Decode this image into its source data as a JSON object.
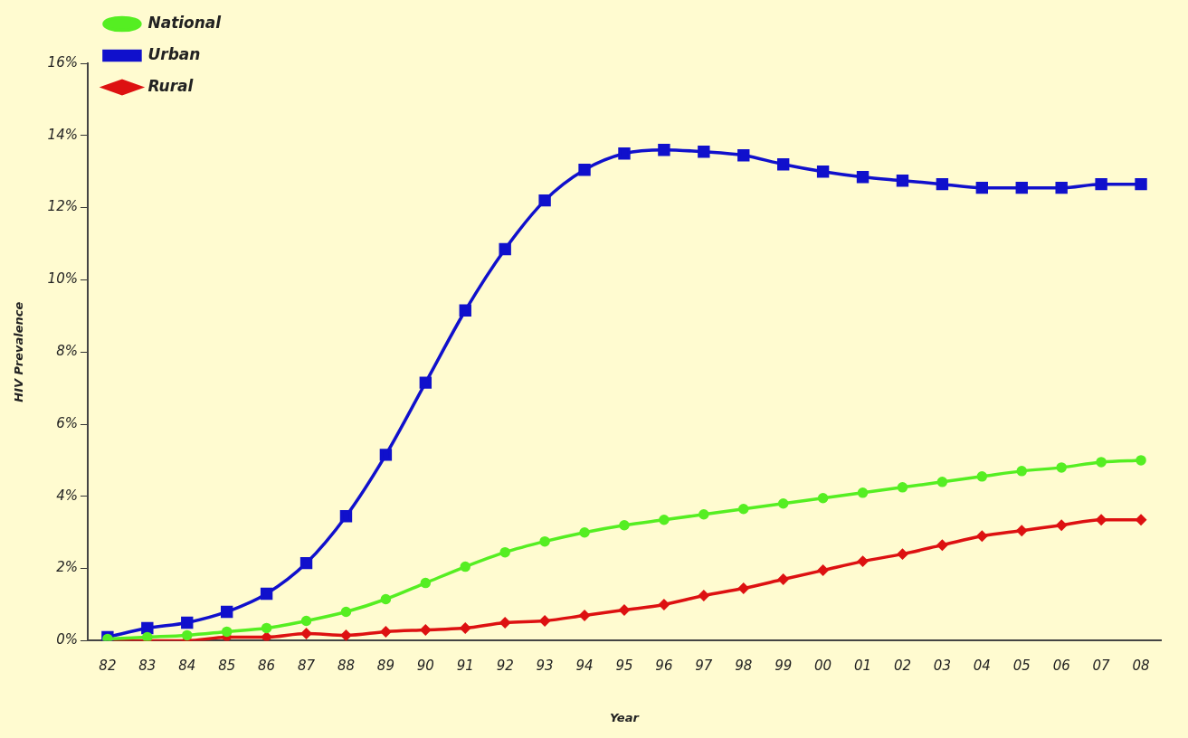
{
  "chart_data": {
    "type": "line",
    "xlabel": "Year",
    "ylabel": "HIV Prevalence",
    "categories": [
      "82",
      "83",
      "84",
      "85",
      "86",
      "87",
      "88",
      "89",
      "90",
      "91",
      "92",
      "93",
      "94",
      "95",
      "96",
      "97",
      "98",
      "99",
      "00",
      "01",
      "02",
      "03",
      "04",
      "05",
      "06",
      "07",
      "08"
    ],
    "series": [
      {
        "name": "National",
        "color": "#55ee22",
        "marker": "circle",
        "values": [
          0.05,
          0.1,
          0.15,
          0.25,
          0.35,
          0.55,
          0.8,
          1.15,
          1.6,
          2.05,
          2.45,
          2.75,
          3.0,
          3.2,
          3.35,
          3.5,
          3.65,
          3.8,
          3.95,
          4.1,
          4.25,
          4.4,
          4.55,
          4.7,
          4.8,
          4.95,
          5.0
        ]
      },
      {
        "name": "Urban",
        "color": "#1010cc",
        "marker": "square",
        "values": [
          0.1,
          0.35,
          0.5,
          0.8,
          1.3,
          2.15,
          3.45,
          5.15,
          7.15,
          9.15,
          10.85,
          12.2,
          13.05,
          13.5,
          13.6,
          13.55,
          13.45,
          13.2,
          13.0,
          12.85,
          12.75,
          12.65,
          12.55,
          12.55,
          12.55,
          12.65,
          12.65
        ]
      },
      {
        "name": "Rural",
        "color": "#dd1111",
        "marker": "diamond",
        "values": [
          0.0,
          0.0,
          0.0,
          0.1,
          0.1,
          0.2,
          0.15,
          0.25,
          0.3,
          0.35,
          0.5,
          0.55,
          0.7,
          0.85,
          1.0,
          1.25,
          1.45,
          1.7,
          1.95,
          2.2,
          2.4,
          2.65,
          2.9,
          3.05,
          3.2,
          3.35,
          3.35
        ]
      }
    ],
    "ylim": [
      0,
      16
    ],
    "yticks": [
      {
        "value": 0,
        "label": "0%"
      },
      {
        "value": 2,
        "label": "2%"
      },
      {
        "value": 4,
        "label": "4%"
      },
      {
        "value": 6,
        "label": "6%"
      },
      {
        "value": 8,
        "label": "8%"
      },
      {
        "value": 10,
        "label": "10%"
      },
      {
        "value": 12,
        "label": "12%"
      },
      {
        "value": 14,
        "label": "14%"
      },
      {
        "value": 16,
        "label": "16%"
      }
    ],
    "grid": false,
    "legend": "top left",
    "line_style": "solid"
  }
}
